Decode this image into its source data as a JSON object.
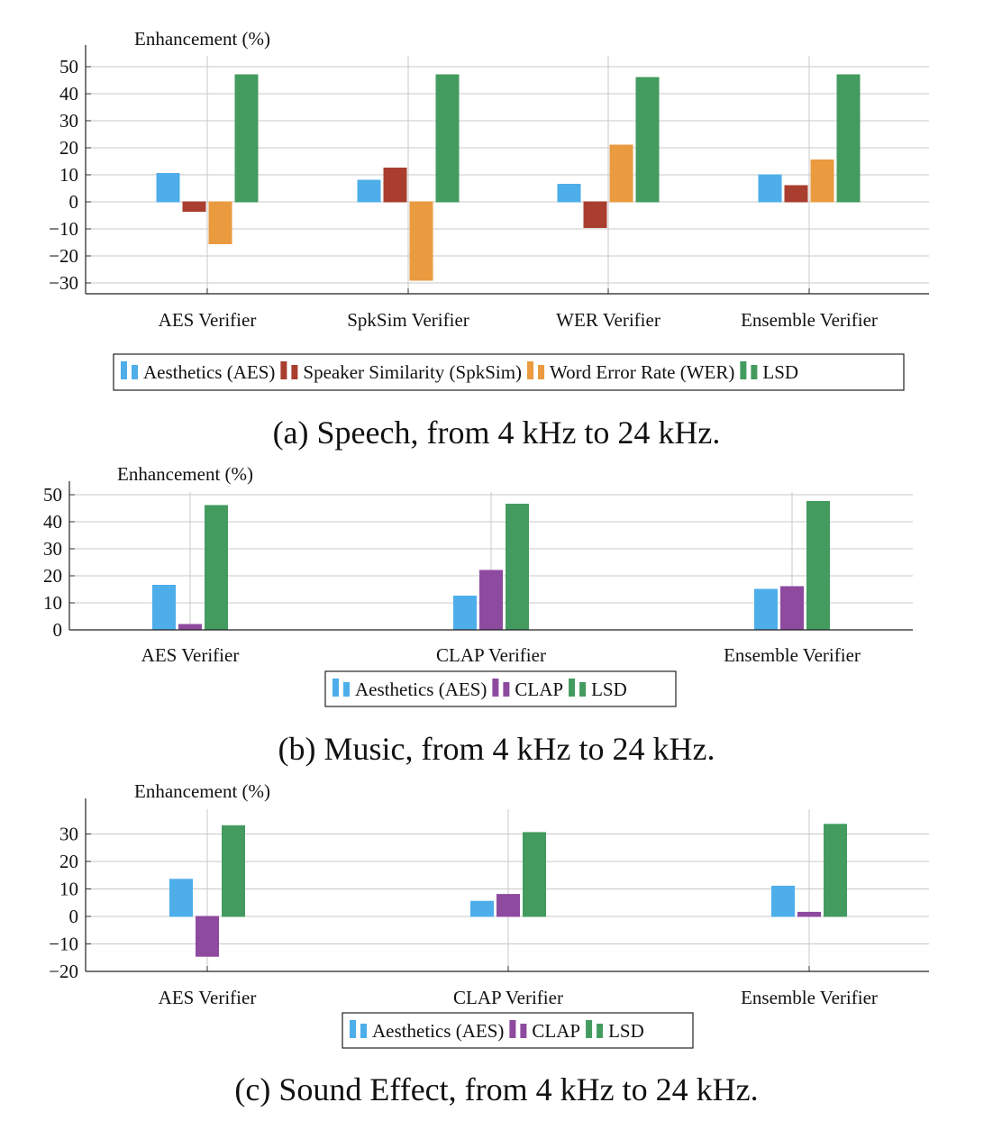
{
  "colors": {
    "aes": "#4DAEEA",
    "spksim": "#A93E2F",
    "wer": "#EA9A3F",
    "lsd": "#439B5F",
    "clap": "#8E4A9F"
  },
  "chart_data": [
    {
      "type": "bar",
      "ylabel": "Enhancement (%)",
      "caption": "(a) Speech, from 4 kHz to 24 kHz.",
      "ylim": [
        -34,
        54
      ],
      "yticks": [
        -30,
        -20,
        -10,
        0,
        10,
        20,
        30,
        40,
        50
      ],
      "ytick_labels": [
        "−30",
        "−20",
        "−10",
        "0",
        "10",
        "20",
        "30",
        "40",
        "50"
      ],
      "grid": true,
      "legend_position": "bottom",
      "categories": [
        "AES Verifier",
        "SpkSim Verifier",
        "WER Verifier",
        "Ensemble Verifier"
      ],
      "series": [
        {
          "name": "Aesthetics (AES)",
          "color_key": "aes",
          "values": [
            10.5,
            8,
            6.5,
            10
          ]
        },
        {
          "name": "Speaker Similarity (SpkSim)",
          "color_key": "spksim",
          "values": [
            -3.5,
            12.5,
            -9.5,
            6
          ]
        },
        {
          "name": "Word Error Rate (WER)",
          "color_key": "wer",
          "values": [
            -15.5,
            -29,
            21,
            15.5
          ]
        },
        {
          "name": "LSD",
          "color_key": "lsd",
          "values": [
            47,
            47,
            46,
            47
          ]
        }
      ]
    },
    {
      "type": "bar",
      "ylabel": "Enhancement (%)",
      "caption": "(b) Music, from 4 kHz to 24 kHz.",
      "ylim": [
        0,
        51
      ],
      "yticks": [
        0,
        10,
        20,
        30,
        40,
        50
      ],
      "ytick_labels": [
        "0",
        "10",
        "20",
        "30",
        "40",
        "50"
      ],
      "grid": true,
      "legend_position": "bottom",
      "categories": [
        "AES Verifier",
        "CLAP Verifier",
        "Ensemble Verifier"
      ],
      "series": [
        {
          "name": "Aesthetics (AES)",
          "color_key": "aes",
          "values": [
            16.5,
            12.5,
            15
          ]
        },
        {
          "name": "CLAP",
          "color_key": "clap",
          "values": [
            2,
            22,
            16
          ]
        },
        {
          "name": "LSD",
          "color_key": "lsd",
          "values": [
            46,
            46.5,
            47.5
          ]
        }
      ]
    },
    {
      "type": "bar",
      "ylabel": "Enhancement (%)",
      "caption": "(c) Sound Effect, from 4 kHz to 24 kHz.",
      "ylim": [
        -20,
        39
      ],
      "yticks": [
        -20,
        -10,
        0,
        10,
        20,
        30
      ],
      "ytick_labels": [
        "−20",
        "−10",
        "0",
        "10",
        "20",
        "30"
      ],
      "grid": true,
      "legend_position": "bottom",
      "categories": [
        "AES Verifier",
        "CLAP Verifier",
        "Ensemble Verifier"
      ],
      "series": [
        {
          "name": "Aesthetics (AES)",
          "color_key": "aes",
          "values": [
            13.5,
            5.5,
            11
          ]
        },
        {
          "name": "CLAP",
          "color_key": "clap",
          "values": [
            -14.5,
            8,
            1.5
          ]
        },
        {
          "name": "LSD",
          "color_key": "lsd",
          "values": [
            33,
            30.5,
            33.5
          ]
        }
      ]
    }
  ]
}
